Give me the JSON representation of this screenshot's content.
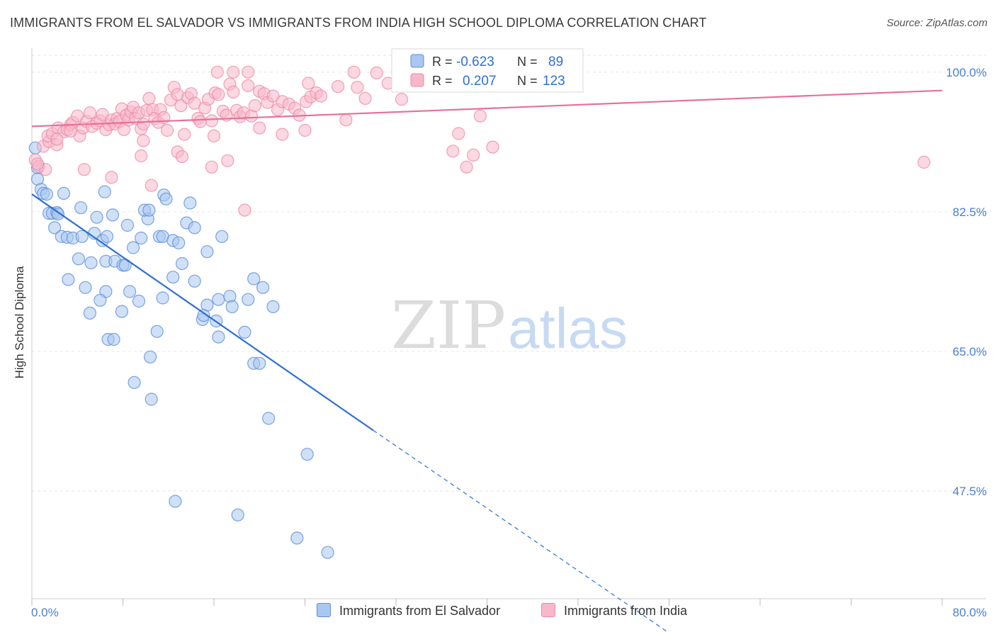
{
  "title": "IMMIGRANTS FROM EL SALVADOR VS IMMIGRANTS FROM INDIA HIGH SCHOOL DIPLOMA CORRELATION CHART",
  "source": "Source: ZipAtlas.com",
  "watermark": {
    "zip": "ZIP",
    "atlas": "atlas"
  },
  "legend_top": {
    "row1": {
      "r_label": "R =",
      "r_value": "-0.623",
      "n_label": "N =",
      "n_value": "89"
    },
    "row2": {
      "r_label": "R =",
      "r_value": "0.207",
      "n_label": "N =",
      "n_value": "123"
    }
  },
  "legend_bottom": {
    "series1": "Immigrants from El Salvador",
    "series2": "Immigrants from India"
  },
  "colors": {
    "blue_fill": "#a9c7f0",
    "blue_stroke": "#5b8fd8",
    "blue_line": "#2e6fd6",
    "pink_fill": "#f7b8ca",
    "pink_stroke": "#ee8aa8",
    "pink_line": "#e8709a",
    "axis_text": "#4a7ed4",
    "grid": "#e6e6e6"
  },
  "chart_data": {
    "type": "scatter",
    "title": "IMMIGRANTS FROM EL SALVADOR VS IMMIGRANTS FROM INDIA HIGH SCHOOL DIPLOMA CORRELATION CHART",
    "xlabel": "",
    "ylabel": "High School Diploma",
    "xlim": [
      0,
      80
    ],
    "ylim": [
      34,
      103
    ],
    "x_tick_labels": [
      "0.0%",
      "80.0%"
    ],
    "y_ticks": [
      {
        "value": 100,
        "label": "100.0%"
      },
      {
        "value": 82.5,
        "label": "82.5%"
      },
      {
        "value": 65,
        "label": "65.0%"
      },
      {
        "value": 47.5,
        "label": "47.5%"
      }
    ],
    "grid": true,
    "legend_position": "top-center",
    "series": [
      {
        "name": "Immigrants from El Salvador",
        "color": "#5b8fd8",
        "trend": {
          "x0": 0,
          "y0": 84.7,
          "x1": 30,
          "y1": 55.1,
          "dash_to_x": 55.8,
          "dash_to_y": 29.9
        },
        "points": [
          [
            0.3,
            90.5
          ],
          [
            0.5,
            88.0
          ],
          [
            0.5,
            86.6
          ],
          [
            0.8,
            85.3
          ],
          [
            1.0,
            84.8
          ],
          [
            1.3,
            84.7
          ],
          [
            2.8,
            84.8
          ],
          [
            1.5,
            82.3
          ],
          [
            1.8,
            82.3
          ],
          [
            2.2,
            82.4
          ],
          [
            2.3,
            82.2
          ],
          [
            4.3,
            83.0
          ],
          [
            6.4,
            85.0
          ],
          [
            7.1,
            82.1
          ],
          [
            5.7,
            81.8
          ],
          [
            8.4,
            80.8
          ],
          [
            2.0,
            80.5
          ],
          [
            2.6,
            79.4
          ],
          [
            3.1,
            79.3
          ],
          [
            3.6,
            79.2
          ],
          [
            4.4,
            79.4
          ],
          [
            5.5,
            79.8
          ],
          [
            6.2,
            78.9
          ],
          [
            6.6,
            79.4
          ],
          [
            9.6,
            79.2
          ],
          [
            10.2,
            81.6
          ],
          [
            9.9,
            82.7
          ],
          [
            10.3,
            82.7
          ],
          [
            11.6,
            84.6
          ],
          [
            11.8,
            84.1
          ],
          [
            13.9,
            83.6
          ],
          [
            13.6,
            81.1
          ],
          [
            14.3,
            80.5
          ],
          [
            11.2,
            79.4
          ],
          [
            11.5,
            79.4
          ],
          [
            12.4,
            78.9
          ],
          [
            12.9,
            78.6
          ],
          [
            13.2,
            76.0
          ],
          [
            15.4,
            77.5
          ],
          [
            16.7,
            79.4
          ],
          [
            8.9,
            78.0
          ],
          [
            5.2,
            76.1
          ],
          [
            4.1,
            76.6
          ],
          [
            6.5,
            76.3
          ],
          [
            7.3,
            76.3
          ],
          [
            8.0,
            75.8
          ],
          [
            8.2,
            75.8
          ],
          [
            3.2,
            74.0
          ],
          [
            4.7,
            73.0
          ],
          [
            6.5,
            72.5
          ],
          [
            8.6,
            72.5
          ],
          [
            9.4,
            71.3
          ],
          [
            11.5,
            71.7
          ],
          [
            12.4,
            74.3
          ],
          [
            14.3,
            73.8
          ],
          [
            15.4,
            70.8
          ],
          [
            16.4,
            71.5
          ],
          [
            17.4,
            71.9
          ],
          [
            17.6,
            70.6
          ],
          [
            19.0,
            71.5
          ],
          [
            19.5,
            74.1
          ],
          [
            20.3,
            73.0
          ],
          [
            21.2,
            70.6
          ],
          [
            5.1,
            69.8
          ],
          [
            6.0,
            71.4
          ],
          [
            7.9,
            70.0
          ],
          [
            15.0,
            69.0
          ],
          [
            15.1,
            69.5
          ],
          [
            16.2,
            68.8
          ],
          [
            16.4,
            66.8
          ],
          [
            18.7,
            67.4
          ],
          [
            11.0,
            67.5
          ],
          [
            6.7,
            66.5
          ],
          [
            7.2,
            66.5
          ],
          [
            10.4,
            64.3
          ],
          [
            19.5,
            63.5
          ],
          [
            20.0,
            63.5
          ],
          [
            9.0,
            61.1
          ],
          [
            10.5,
            59.0
          ],
          [
            20.8,
            56.6
          ],
          [
            24.2,
            52.1
          ],
          [
            12.6,
            46.2
          ],
          [
            18.1,
            44.5
          ],
          [
            23.3,
            41.6
          ],
          [
            26.0,
            39.8
          ]
        ]
      },
      {
        "name": "Immigrants from India",
        "color": "#ee8aa8",
        "trend": {
          "x0": 0,
          "y0": 93.2,
          "x1": 80,
          "y1": 97.7
        },
        "points": [
          [
            0.3,
            89.0
          ],
          [
            0.6,
            88.2
          ],
          [
            1.2,
            87.8
          ],
          [
            0.5,
            88.5
          ],
          [
            1.0,
            90.7
          ],
          [
            1.5,
            91.3
          ],
          [
            2.2,
            90.9
          ],
          [
            1.4,
            92.0
          ],
          [
            1.8,
            92.3
          ],
          [
            2.3,
            93.0
          ],
          [
            2.8,
            92.5
          ],
          [
            3.1,
            92.8
          ],
          [
            3.4,
            93.4
          ],
          [
            3.6,
            93.7
          ],
          [
            4.0,
            94.5
          ],
          [
            4.2,
            92.0
          ],
          [
            4.5,
            93.0
          ],
          [
            4.8,
            93.8
          ],
          [
            5.1,
            94.9
          ],
          [
            5.3,
            93.2
          ],
          [
            5.7,
            93.6
          ],
          [
            6.0,
            93.9
          ],
          [
            6.2,
            94.7
          ],
          [
            6.5,
            92.8
          ],
          [
            6.8,
            93.4
          ],
          [
            7.0,
            94.0
          ],
          [
            7.3,
            93.5
          ],
          [
            7.5,
            94.2
          ],
          [
            7.7,
            93.8
          ],
          [
            7.9,
            95.4
          ],
          [
            8.1,
            92.8
          ],
          [
            8.3,
            94.6
          ],
          [
            8.5,
            94.0
          ],
          [
            8.7,
            95.0
          ],
          [
            8.9,
            95.6
          ],
          [
            9.1,
            94.2
          ],
          [
            9.4,
            94.9
          ],
          [
            9.6,
            92.9
          ],
          [
            9.8,
            93.5
          ],
          [
            10.1,
            95.2
          ],
          [
            10.3,
            96.7
          ],
          [
            10.6,
            95.3
          ],
          [
            10.8,
            94.2
          ],
          [
            11.1,
            93.7
          ],
          [
            11.3,
            95.3
          ],
          [
            11.6,
            94.3
          ],
          [
            11.9,
            92.7
          ],
          [
            12.2,
            96.5
          ],
          [
            12.5,
            98.1
          ],
          [
            12.8,
            97.2
          ],
          [
            13.1,
            95.8
          ],
          [
            13.4,
            92.2
          ],
          [
            13.7,
            96.8
          ],
          [
            14.0,
            97.3
          ],
          [
            14.3,
            96.1
          ],
          [
            14.6,
            94.2
          ],
          [
            14.8,
            93.8
          ],
          [
            15.2,
            95.5
          ],
          [
            15.5,
            96.6
          ],
          [
            15.8,
            93.9
          ],
          [
            16.1,
            97.4
          ],
          [
            16.4,
            97.2
          ],
          [
            16.8,
            95.1
          ],
          [
            17.1,
            94.6
          ],
          [
            17.4,
            98.5
          ],
          [
            17.7,
            97.5
          ],
          [
            18.0,
            95.2
          ],
          [
            18.3,
            94.4
          ],
          [
            18.6,
            94.9
          ],
          [
            19.0,
            98.3
          ],
          [
            19.3,
            94.5
          ],
          [
            19.6,
            95.8
          ],
          [
            20.0,
            97.6
          ],
          [
            20.4,
            97.3
          ],
          [
            20.7,
            96.2
          ],
          [
            21.2,
            97.0
          ],
          [
            21.6,
            95.3
          ],
          [
            22.0,
            96.3
          ],
          [
            22.6,
            96.0
          ],
          [
            23.1,
            95.5
          ],
          [
            23.5,
            94.6
          ],
          [
            24.1,
            96.3
          ],
          [
            24.5,
            96.9
          ],
          [
            25.0,
            97.4
          ],
          [
            25.4,
            97.0
          ],
          [
            26.9,
            98.2
          ],
          [
            27.6,
            94.0
          ],
          [
            28.6,
            98.1
          ],
          [
            29.3,
            96.7
          ],
          [
            30.3,
            99.9
          ],
          [
            31.3,
            98.6
          ],
          [
            32.4,
            98.3
          ],
          [
            33.5,
            98.5
          ],
          [
            20.0,
            93.0
          ],
          [
            22.0,
            92.2
          ],
          [
            24.0,
            92.7
          ],
          [
            16.0,
            92.0
          ],
          [
            12.8,
            90.0
          ],
          [
            13.2,
            89.4
          ],
          [
            9.6,
            89.5
          ],
          [
            9.8,
            91.4
          ],
          [
            7.0,
            86.8
          ],
          [
            10.5,
            85.8
          ],
          [
            15.8,
            88.1
          ],
          [
            17.2,
            88.9
          ],
          [
            18.7,
            82.7
          ],
          [
            37.5,
            92.3
          ],
          [
            37.0,
            90.1
          ],
          [
            38.2,
            88.1
          ],
          [
            38.8,
            89.6
          ],
          [
            39.4,
            94.5
          ],
          [
            40.5,
            90.6
          ],
          [
            78.4,
            88.7
          ],
          [
            17.7,
            100.0
          ],
          [
            19.0,
            100.0
          ],
          [
            16.3,
            100.0
          ],
          [
            28.3,
            100.0
          ],
          [
            24.3,
            98.6
          ],
          [
            32.5,
            96.6
          ],
          [
            34.0,
            99.4
          ],
          [
            4.6,
            87.8
          ],
          [
            3.4,
            92.6
          ],
          [
            2.2,
            91.6
          ]
        ]
      }
    ]
  }
}
